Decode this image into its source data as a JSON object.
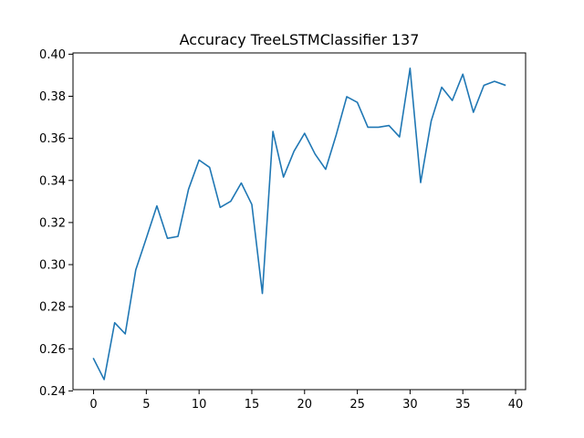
{
  "chart_data": {
    "type": "line",
    "title": "Accuracy TreeLSTMClassifier 137",
    "xlabel": "",
    "ylabel": "",
    "xlim": [
      -1.95,
      40.95
    ],
    "ylim": [
      0.2406,
      0.4006
    ],
    "x_ticks": [
      0,
      5,
      10,
      15,
      20,
      25,
      30,
      35,
      40
    ],
    "x_tick_labels": [
      "0",
      "5",
      "10",
      "15",
      "20",
      "25",
      "30",
      "35",
      "40"
    ],
    "y_ticks": [
      0.24,
      0.26,
      0.28,
      0.3,
      0.32,
      0.34,
      0.36,
      0.38,
      0.4
    ],
    "y_tick_labels": [
      "0.24",
      "0.26",
      "0.28",
      "0.30",
      "0.32",
      "0.34",
      "0.36",
      "0.38",
      "0.40"
    ],
    "grid": false,
    "series": [
      {
        "color": "#1f77b4",
        "x": [
          0,
          1,
          2,
          3,
          4,
          5,
          6,
          7,
          8,
          9,
          10,
          11,
          12,
          13,
          14,
          15,
          16,
          17,
          18,
          19,
          20,
          21,
          22,
          23,
          24,
          25,
          26,
          27,
          28,
          29,
          30,
          31,
          32,
          33,
          34,
          35,
          36,
          37,
          38,
          39
        ],
        "values": [
          0.2553,
          0.2454,
          0.2724,
          0.2671,
          0.2975,
          0.3126,
          0.3279,
          0.3125,
          0.3134,
          0.3358,
          0.3497,
          0.3462,
          0.3272,
          0.3301,
          0.3388,
          0.3286,
          0.2863,
          0.3633,
          0.3416,
          0.3539,
          0.3624,
          0.3525,
          0.3453,
          0.3617,
          0.3798,
          0.3771,
          0.3653,
          0.3653,
          0.3661,
          0.3607,
          0.3933,
          0.339,
          0.3682,
          0.3843,
          0.378,
          0.3905,
          0.3724,
          0.3852,
          0.3871,
          0.3853
        ]
      }
    ]
  }
}
